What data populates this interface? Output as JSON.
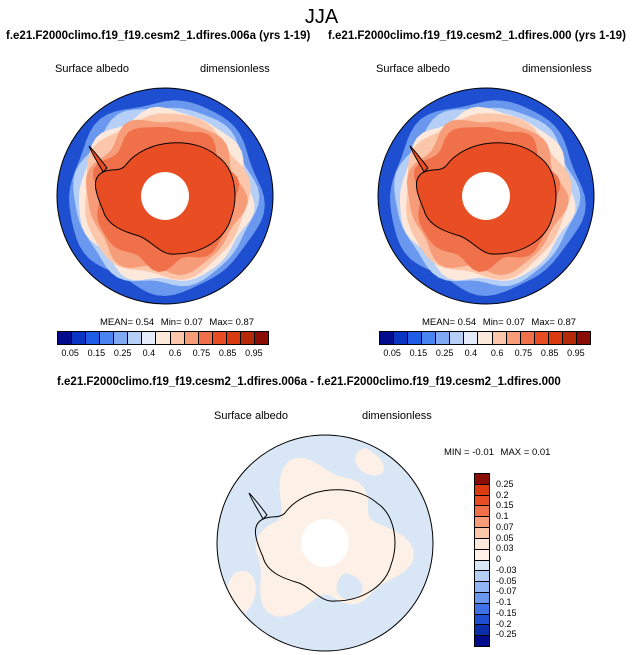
{
  "season": "JJA",
  "panels": [
    {
      "title": "f.e21.F2000climo.f19_f19.cesm2_1.dfires.006a (yrs 1-19)",
      "variable": "Surface albedo",
      "units": "dimensionless",
      "stats": {
        "mean_label": "MEAN=",
        "mean": "0.54",
        "min_label": "Min=",
        "min": "0.07",
        "max_label": "Max=",
        "max": "0.87"
      }
    },
    {
      "title": "f.e21.F2000climo.f19_f19.cesm2_1.dfires.000 (yrs 1-19)",
      "variable": "Surface albedo",
      "units": "dimensionless",
      "stats": {
        "mean_label": "MEAN=",
        "mean": "0.54",
        "min_label": "Min=",
        "min": "0.07",
        "max_label": "Max=",
        "max": "0.87"
      }
    }
  ],
  "diff_panel": {
    "title": "f.e21.F2000climo.f19_f19.cesm2_1.dfires.006a - f.e21.F2000climo.f19_f19.cesm2_1.dfires.000",
    "variable": "Surface albedo",
    "units": "dimensionless",
    "stats": {
      "min_label": "MIN =",
      "min": "-0.01",
      "max_label": "MAX =",
      "max": "0.01"
    }
  },
  "albedo_colorbar": {
    "colors": [
      "#000c8c",
      "#0a35c2",
      "#1f5ce6",
      "#4a84f0",
      "#7fa9f3",
      "#b6cff7",
      "#e4ecfa",
      "#fde8dc",
      "#fbc6aa",
      "#f69c78",
      "#f0704a",
      "#e84d24",
      "#d93a10",
      "#b52808",
      "#8a0e05"
    ],
    "ticks": [
      "0.05",
      "0.15",
      "0.25",
      "0.4",
      "0.6",
      "0.75",
      "0.85",
      "0.95"
    ]
  },
  "diff_colorbar": {
    "colors": [
      "#8a0e05",
      "#d93a10",
      "#e84d24",
      "#f0704a",
      "#f69c78",
      "#fbc6aa",
      "#fde8dc",
      "#fdf0e6",
      "#d8e6f6",
      "#b6cff7",
      "#92b5f3",
      "#6a98ef",
      "#3f72e6",
      "#1f4fd1",
      "#0a2ea8",
      "#000c8c"
    ],
    "ticks": [
      "0.25",
      "0.2",
      "0.15",
      "0.1",
      "0.07",
      "0.05",
      "0.03",
      "0",
      "-0.03",
      "-0.05",
      "-0.07",
      "-0.1",
      "-0.15",
      "-0.2",
      "-0.25"
    ]
  },
  "map_colors": {
    "ocean": "#1f4fd1",
    "ocean_light": "#6a98ef",
    "ice_edge": "#b6cff7",
    "band1": "#fde8dc",
    "band2": "#fbc6aa",
    "band3": "#f69c78",
    "band4": "#f0704a",
    "ice": "#e84d24",
    "hole": "#ffffff",
    "diff_pos": "#fdf0e6",
    "diff_neg": "#d8e6f6"
  }
}
